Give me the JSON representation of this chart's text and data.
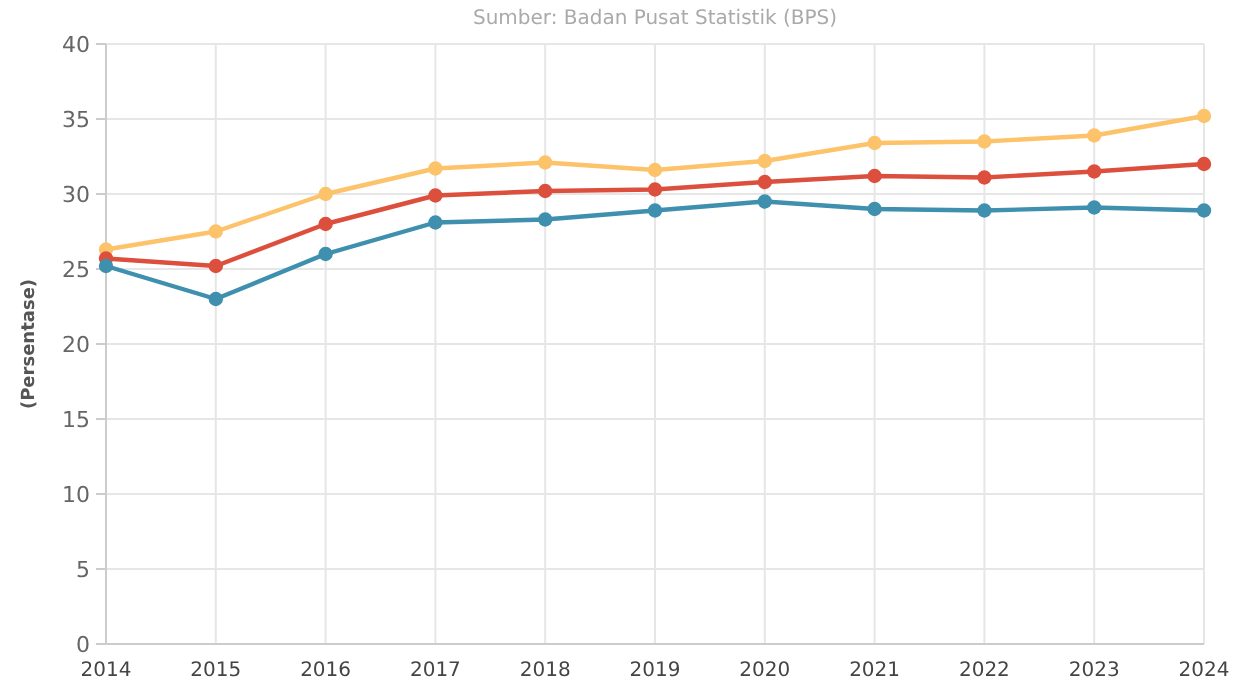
{
  "chart_data": {
    "type": "line",
    "subtitle": "Sumber: Badan Pusat Statistik (BPS)",
    "ylabel": "(Persentase)",
    "x": [
      2014,
      2015,
      2016,
      2017,
      2018,
      2019,
      2020,
      2021,
      2022,
      2023,
      2024
    ],
    "xlim": [
      2014,
      2024
    ],
    "xticks": [
      2014,
      2015,
      2016,
      2017,
      2018,
      2019,
      2020,
      2021,
      2022,
      2023,
      2024
    ],
    "ylim": [
      0,
      40
    ],
    "yticks": [
      0,
      5,
      10,
      15,
      20,
      25,
      30,
      35,
      40
    ],
    "grid": true,
    "marker": "circle",
    "line_style": "solid",
    "series": [
      {
        "color": "#fdc36b",
        "values": [
          26.3,
          27.5,
          30.0,
          31.7,
          32.1,
          31.6,
          32.2,
          33.4,
          33.5,
          33.9,
          35.2
        ]
      },
      {
        "color": "#dc4f3c",
        "values": [
          25.7,
          25.2,
          28.0,
          29.9,
          30.2,
          30.3,
          30.8,
          31.2,
          31.1,
          31.5,
          32.0
        ]
      },
      {
        "color": "#3f8fae",
        "values": [
          25.2,
          23.0,
          26.0,
          28.1,
          28.3,
          28.9,
          29.5,
          29.0,
          28.9,
          29.1,
          28.9
        ]
      }
    ]
  }
}
